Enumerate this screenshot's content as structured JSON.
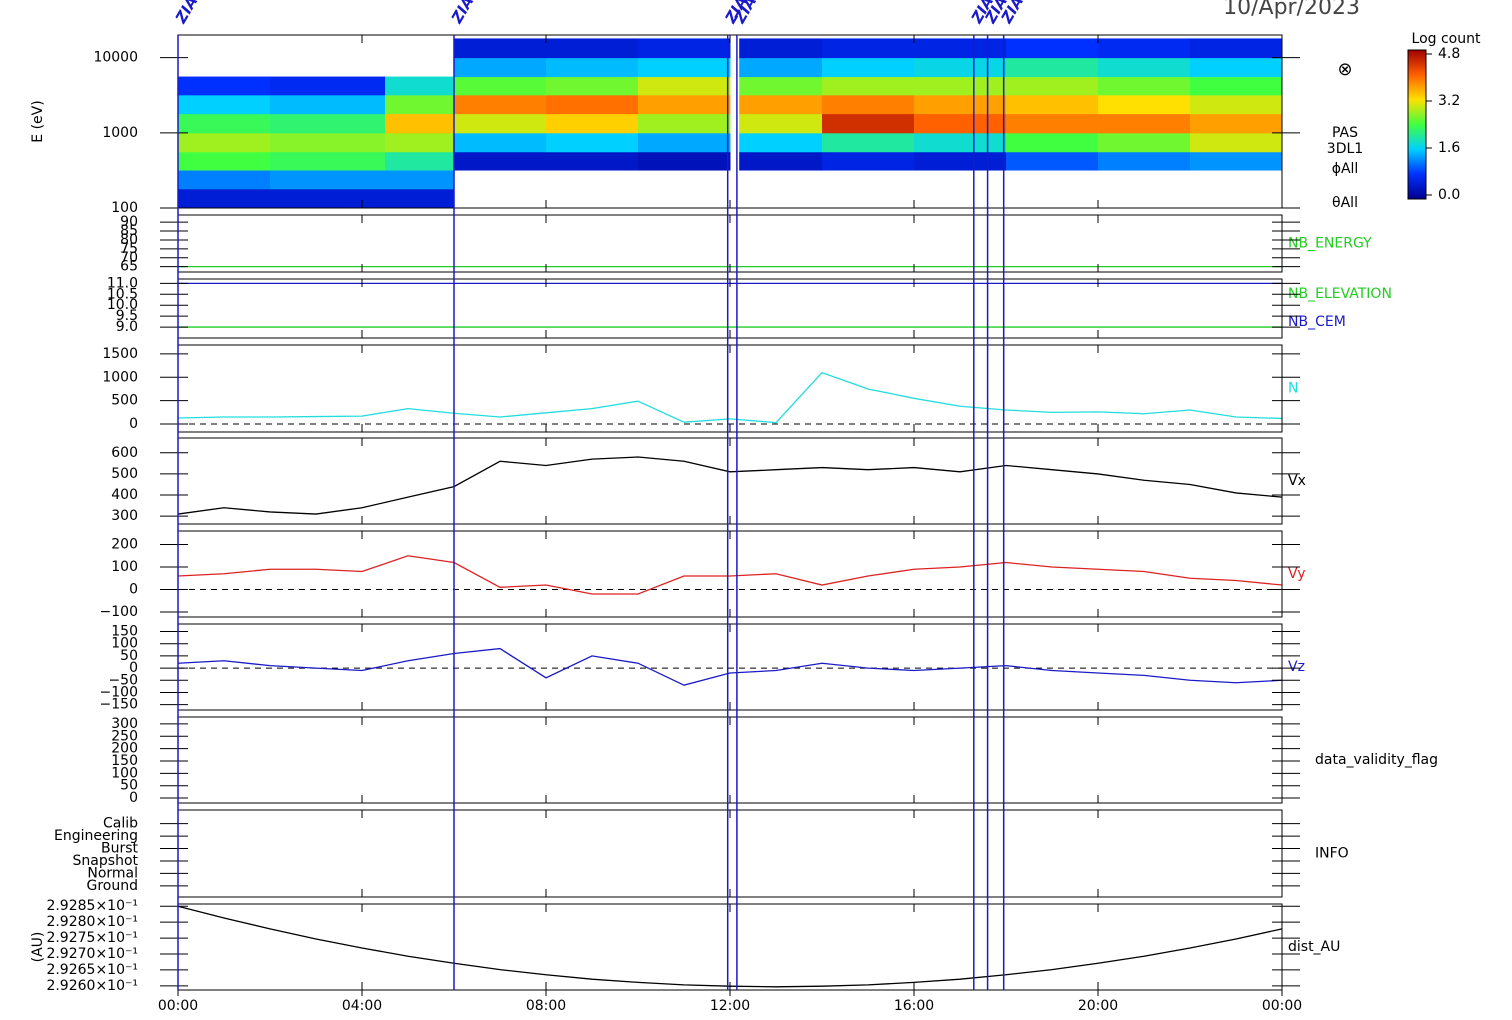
{
  "chart_data": [
    {
      "type": "spectrogram",
      "title": "10/Apr/2023",
      "ylabel": "E (eV)",
      "log": true,
      "ylim": [
        100,
        20000
      ],
      "yticks": [
        100,
        1000,
        10000
      ],
      "x_edges": [
        0,
        2,
        4.5,
        6,
        8,
        10,
        12,
        12.2,
        14,
        16,
        18,
        20,
        22,
        24
      ],
      "y_edges": [
        100,
        180,
        320,
        560,
        1000,
        1800,
        3200,
        5600,
        10000,
        18000
      ],
      "values": [
        [
          0.5,
          1.2,
          2.4,
          2.8,
          2.3,
          1.6,
          0.8,
          null,
          null
        ],
        [
          0.5,
          1.3,
          2.3,
          2.7,
          2.2,
          1.5,
          0.7,
          null,
          null
        ],
        [
          0.5,
          1.3,
          2.0,
          2.8,
          3.4,
          2.6,
          1.8,
          null,
          null
        ],
        [
          null,
          null,
          0.4,
          1.5,
          3.0,
          3.8,
          2.5,
          1.4,
          0.5
        ],
        [
          null,
          null,
          0.4,
          1.6,
          3.3,
          3.9,
          2.6,
          1.5,
          0.5
        ],
        [
          null,
          null,
          0.3,
          1.4,
          2.8,
          3.6,
          3.0,
          1.6,
          0.6
        ],
        [
          null,
          null,
          null,
          null,
          null,
          null,
          null,
          null,
          null
        ],
        [
          null,
          null,
          0.4,
          1.6,
          3.0,
          3.6,
          2.6,
          1.4,
          0.5
        ],
        [
          null,
          null,
          0.6,
          2.0,
          4.4,
          3.8,
          2.8,
          1.6,
          0.6
        ],
        [
          null,
          null,
          0.5,
          1.8,
          4.0,
          3.6,
          2.8,
          1.7,
          0.6
        ],
        [
          null,
          null,
          1.0,
          2.4,
          3.8,
          3.4,
          2.8,
          2.0,
          0.8
        ],
        [
          null,
          null,
          1.2,
          2.6,
          3.8,
          3.2,
          2.6,
          1.8,
          0.7
        ],
        [
          null,
          null,
          1.3,
          3.0,
          3.6,
          3.0,
          2.4,
          1.6,
          0.6
        ]
      ],
      "colormap": [
        "#00008f",
        "#0030ff",
        "#00d0ff",
        "#40ff40",
        "#ffe000",
        "#ff6000",
        "#a00000"
      ],
      "clabel": "Log count",
      "clim": [
        0,
        4.8
      ],
      "cticks": [
        {
          "value": 0,
          "label": "0.0"
        },
        {
          "value": 1.6,
          "label": "1.6"
        },
        {
          "value": 3.2,
          "label": "3.2"
        },
        {
          "value": 4.8,
          "label": "4.8"
        }
      ],
      "symbol": "⊗",
      "side_labels": [
        "PAS",
        "3DL1",
        "ϕAll",
        "θAll"
      ],
      "events": {
        "x": [
          0,
          6,
          11.95,
          12.15,
          17.3,
          17.6,
          17.95
        ],
        "labels": [
          "ZIAS",
          "ZIAS",
          "ZIAS",
          "ZIAS",
          "ZIAS",
          "ZIAS",
          "ZIAS"
        ],
        "color": "#1a1ac8"
      }
    },
    {
      "type": "line",
      "ylim": [
        62,
        94
      ],
      "yticks": [
        65,
        70,
        75,
        80,
        85,
        90
      ],
      "x": [
        0,
        24
      ],
      "series": [
        {
          "name": "NB_ENERGY",
          "color": "#22cc22",
          "values": [
            65,
            65
          ]
        }
      ]
    },
    {
      "type": "line",
      "ylim": [
        8.5,
        11.2
      ],
      "yticks": [
        {
          "value": 9,
          "label": "9.0"
        },
        9.5,
        {
          "value": 10,
          "label": "10.0"
        },
        10.5,
        {
          "value": 11,
          "label": "11.0"
        }
      ],
      "x": [
        0,
        24
      ],
      "series": [
        {
          "name": "NB_ELEVATION",
          "color": "#22cc22",
          "values": [
            9,
            9
          ]
        },
        {
          "name": "NB_CEM",
          "color": "#1a1ac8",
          "values": [
            11,
            11
          ]
        }
      ]
    },
    {
      "type": "line",
      "ylim": [
        -170,
        1690
      ],
      "yticks": [
        0,
        500,
        1000,
        1500
      ],
      "zero_line": true,
      "x": [
        0,
        1,
        2,
        3,
        4,
        5,
        6,
        7,
        8,
        9,
        10,
        11,
        12,
        13,
        14,
        15,
        16,
        17,
        18,
        19,
        20,
        21,
        22,
        23,
        24
      ],
      "series": [
        {
          "name": "N",
          "color": "#22dddd",
          "values": [
            130,
            150,
            150,
            160,
            170,
            330,
            230,
            150,
            240,
            330,
            490,
            40,
            110,
            30,
            1100,
            750,
            550,
            380,
            300,
            250,
            260,
            220,
            300,
            150,
            120
          ]
        }
      ]
    },
    {
      "type": "line",
      "ylim": [
        263,
        670
      ],
      "yticks": [
        300,
        400,
        500,
        600
      ],
      "x": [
        0,
        1,
        2,
        3,
        4,
        5,
        6,
        7,
        8,
        9,
        10,
        11,
        12,
        13,
        14,
        15,
        16,
        17,
        18,
        19,
        20,
        21,
        22,
        23,
        24
      ],
      "series": [
        {
          "name": "Vx",
          "color": "#000000",
          "values": [
            310,
            340,
            320,
            310,
            340,
            390,
            440,
            560,
            540,
            570,
            580,
            560,
            510,
            520,
            530,
            520,
            530,
            510,
            540,
            520,
            500,
            470,
            450,
            410,
            390
          ]
        }
      ]
    },
    {
      "type": "line",
      "ylim": [
        -122,
        260
      ],
      "yticks": [
        {
          "value": -100,
          "label": "−100"
        },
        0,
        100,
        200
      ],
      "zero_line": true,
      "x": [
        0,
        1,
        2,
        3,
        4,
        5,
        6,
        7,
        8,
        9,
        10,
        11,
        12,
        13,
        14,
        15,
        16,
        17,
        18,
        19,
        20,
        21,
        22,
        23,
        24
      ],
      "series": [
        {
          "name": "Vy",
          "color": "#dd2222",
          "values": [
            60,
            70,
            90,
            90,
            80,
            150,
            120,
            10,
            20,
            -20,
            -20,
            60,
            60,
            70,
            20,
            60,
            90,
            100,
            120,
            100,
            90,
            80,
            50,
            40,
            20
          ]
        }
      ]
    },
    {
      "type": "line",
      "ylim": [
        -172,
        181
      ],
      "yticks": [
        {
          "value": -150,
          "label": "−150"
        },
        {
          "value": -100,
          "label": "−100"
        },
        {
          "value": -50,
          "label": "−50"
        },
        0,
        50,
        100,
        150
      ],
      "zero_line": true,
      "x": [
        0,
        1,
        2,
        3,
        4,
        5,
        6,
        7,
        8,
        9,
        10,
        11,
        12,
        13,
        14,
        15,
        16,
        17,
        18,
        19,
        20,
        21,
        22,
        23,
        24
      ],
      "series": [
        {
          "name": "Vz",
          "color": "#1a1ac8",
          "values": [
            20,
            30,
            10,
            0,
            -10,
            30,
            60,
            80,
            -40,
            50,
            20,
            -70,
            -20,
            -10,
            20,
            0,
            -10,
            0,
            10,
            -10,
            -20,
            -30,
            -50,
            -60,
            -50
          ]
        }
      ]
    },
    {
      "type": "line",
      "label": "data_validity_flag",
      "ylim": [
        -20,
        328
      ],
      "yticks": [
        0,
        50,
        100,
        150,
        200,
        250,
        300
      ],
      "series": []
    },
    {
      "type": "line",
      "label": "INFO",
      "ylim": [
        0.1,
        7.1
      ],
      "yticks": [
        {
          "value": 1,
          "label": "Ground"
        },
        {
          "value": 2,
          "label": "Normal"
        },
        {
          "value": 3,
          "label": "Snapshot"
        },
        {
          "value": 4,
          "label": "Burst"
        },
        {
          "value": 5,
          "label": "Engineering"
        },
        {
          "value": 6,
          "label": "Calib"
        }
      ],
      "series": []
    },
    {
      "type": "line",
      "ylabel": "(AU)",
      "ylim": [
        0.292587,
        0.292857
      ],
      "yticks": [
        {
          "value": 0.2926,
          "label": "2.9260×10⁻¹"
        },
        {
          "value": 0.29265,
          "label": "2.9265×10⁻¹"
        },
        {
          "value": 0.2927,
          "label": "2.9270×10⁻¹"
        },
        {
          "value": 0.29275,
          "label": "2.9275×10⁻¹"
        },
        {
          "value": 0.2928,
          "label": "2.9280×10⁻¹"
        },
        {
          "value": 0.29285,
          "label": "2.9285×10⁻¹"
        }
      ],
      "x": [
        0,
        1,
        2,
        3,
        4,
        5,
        6,
        7,
        8,
        9,
        10,
        11,
        12,
        13,
        14,
        15,
        16,
        17,
        18,
        19,
        20,
        21,
        22,
        23,
        24
      ],
      "series": [
        {
          "name": "dist_AU",
          "color": "#000000",
          "values": [
            0.29285,
            0.292813,
            0.292779,
            0.292747,
            0.292719,
            0.292693,
            0.292671,
            0.292651,
            0.292635,
            0.292621,
            0.292611,
            0.292603,
            0.292599,
            0.292597,
            0.292599,
            0.292603,
            0.292611,
            0.292621,
            0.292635,
            0.292651,
            0.292671,
            0.292693,
            0.292719,
            0.292747,
            0.292779
          ]
        }
      ],
      "xlim": [
        0,
        24
      ],
      "xticks": [
        {
          "value": 0,
          "label": "00:00"
        },
        {
          "value": 4,
          "label": "04:00"
        },
        {
          "value": 8,
          "label": "08:00"
        },
        {
          "value": 12,
          "label": "12:00"
        },
        {
          "value": 16,
          "label": "16:00"
        },
        {
          "value": 20,
          "label": "20:00"
        },
        {
          "value": 24,
          "label": "00:00"
        }
      ]
    }
  ]
}
